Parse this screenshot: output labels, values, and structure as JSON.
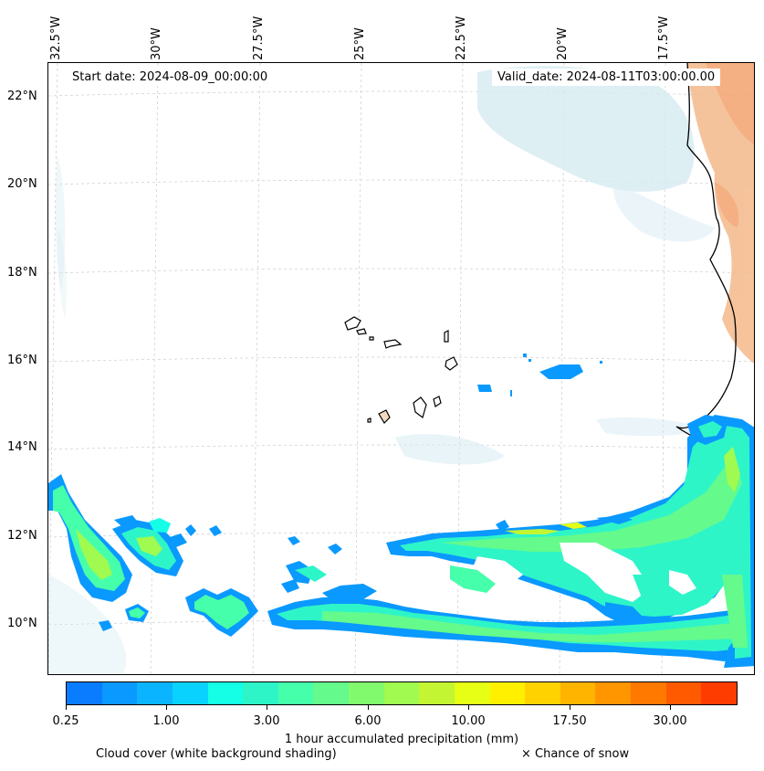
{
  "map": {
    "lon_labels": [
      "32.5°W",
      "30°W",
      "27.5°W",
      "25°W",
      "22.5°W",
      "20°W",
      "17.5°W"
    ],
    "lat_labels": [
      "22°N",
      "20°N",
      "18°N",
      "16°N",
      "14°N",
      "12°N",
      "10°N"
    ],
    "start_date": "Start date: 2024-08-09_00:00:00",
    "valid_date": "Valid_date: 2024-08-11T03:00:00.00"
  },
  "colorbar": {
    "colors": [
      "#0a7cff",
      "#0a99ff",
      "#0ab4ff",
      "#0ad2ff",
      "#14ffe6",
      "#2ef5c8",
      "#46ffaa",
      "#64fa8c",
      "#82fa6e",
      "#a0fa50",
      "#c3f532",
      "#e6ff14",
      "#fff000",
      "#ffd200",
      "#ffb400",
      "#ff9600",
      "#ff7800",
      "#ff5a00",
      "#ff3c00"
    ],
    "tick_labels": [
      "0.25",
      "1.00",
      "3.00",
      "6.00",
      "10.00",
      "17.50",
      "30.00"
    ],
    "label": "1 hour accumulated precipitation (mm)"
  },
  "footer": {
    "cloud_note": "Cloud cover (white background shading)",
    "snow_note": "× Chance of snow"
  }
}
